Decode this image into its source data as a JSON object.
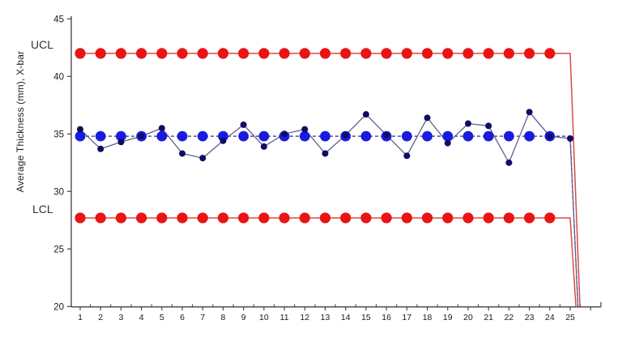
{
  "chart_data": {
    "type": "line",
    "subtype": "xbar-control-chart",
    "title": "",
    "xlabel": "",
    "ylabel": "Average Thickness (mm), X-bar",
    "labels": {
      "ucl": "UCL",
      "lcl": "LCL"
    },
    "x": [
      1,
      2,
      3,
      4,
      5,
      6,
      7,
      8,
      9,
      10,
      11,
      12,
      13,
      14,
      15,
      16,
      17,
      18,
      19,
      20,
      21,
      22,
      23,
      24,
      25
    ],
    "xbar_values": [
      35.4,
      33.7,
      34.3,
      34.8,
      35.5,
      33.3,
      32.9,
      34.4,
      35.8,
      33.9,
      35.0,
      35.4,
      33.3,
      34.9,
      36.7,
      34.9,
      33.1,
      36.4,
      34.2,
      35.9,
      35.7,
      32.5,
      36.9,
      34.8,
      34.6
    ],
    "center_line": 34.8,
    "ucl": 42.0,
    "lcl": 27.7,
    "control_marker_points": 24,
    "drop_off": {
      "ucl_x": 25.48,
      "center_x": 25.38,
      "lcl_x": 25.28,
      "y_end": 20
    },
    "ylim": [
      20,
      45
    ],
    "yticks": [
      20,
      25,
      30,
      35,
      40,
      45
    ],
    "xticks": [
      1,
      2,
      3,
      4,
      5,
      6,
      7,
      8,
      9,
      10,
      11,
      12,
      13,
      14,
      15,
      16,
      17,
      18,
      19,
      20,
      21,
      22,
      23,
      24,
      25
    ],
    "grid": "off",
    "legend": "none",
    "colors": {
      "control_marker": "#e81416",
      "control_line": "#d94a43",
      "center_marker": "#1b1bde",
      "center_dash_line": "#30306e",
      "data_marker": "#0d0d66",
      "data_line": "#5f5f8f",
      "axis": "#404040",
      "tick_label": "#1a1a1a"
    }
  }
}
